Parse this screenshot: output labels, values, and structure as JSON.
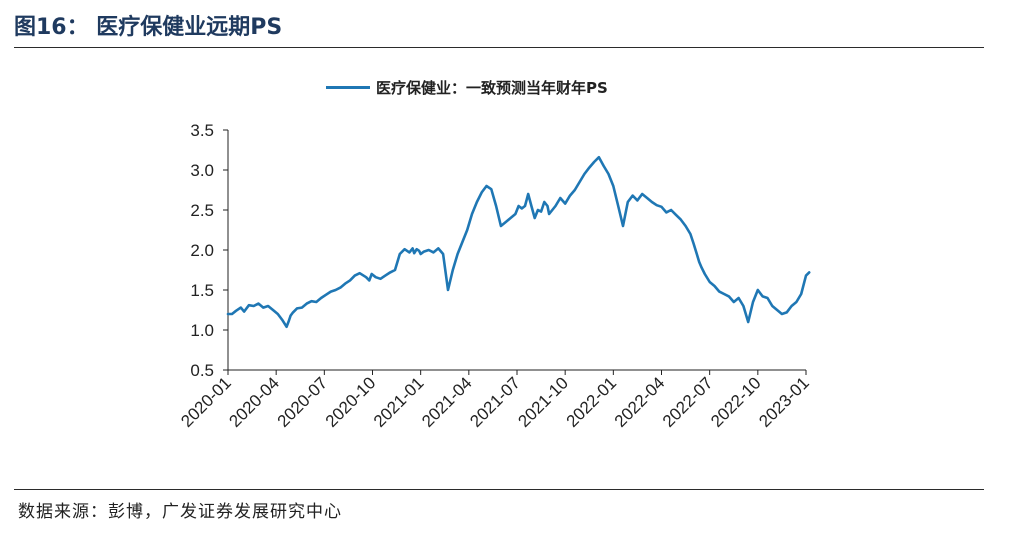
{
  "figure": {
    "title": "图16：  医疗保健业远期PS",
    "source": "数据来源：彭博，广发证券发展研究中心"
  },
  "colors": {
    "series": "#1f77b4",
    "text": "#222222",
    "rule": "#2b2b2b"
  },
  "chart_data": {
    "type": "line",
    "title": "",
    "xlabel": "",
    "ylabel": "",
    "ylim": [
      0.5,
      3.5
    ],
    "yticks": [
      "0.5",
      "1.0",
      "1.5",
      "2.0",
      "2.5",
      "3.0",
      "3.5"
    ],
    "xticks": [
      "2020-01",
      "2020-04",
      "2020-07",
      "2020-10",
      "2021-01",
      "2021-04",
      "2021-07",
      "2021-10",
      "2022-01",
      "2022-04",
      "2022-07",
      "2022-10",
      "2023-01"
    ],
    "legend": "top-center",
    "series": [
      {
        "name": "医疗保健业：一致预测当年财年PS",
        "x": [
          0.0,
          0.25,
          0.5,
          0.8,
          1.0,
          1.3,
          1.6,
          1.9,
          2.2,
          2.5,
          2.8,
          3.1,
          3.4,
          3.65,
          3.8,
          3.9,
          4.05,
          4.3,
          4.6,
          4.9,
          5.2,
          5.5,
          5.8,
          6.1,
          6.4,
          6.7,
          7.0,
          7.3,
          7.6,
          7.9,
          8.2,
          8.6,
          8.8,
          8.95,
          9.2,
          9.5,
          9.8,
          10.1,
          10.4,
          10.7,
          11.0,
          11.3,
          11.5,
          11.6,
          11.75,
          11.9,
          12.0,
          12.2,
          12.5,
          12.8,
          13.1,
          13.4,
          13.7,
          14.0,
          14.3,
          14.6,
          14.9,
          15.2,
          15.5,
          15.8,
          16.1,
          16.4,
          16.7,
          17.0,
          17.3,
          17.6,
          17.9,
          18.1,
          18.3,
          18.5,
          18.7,
          18.9,
          19.1,
          19.3,
          19.5,
          19.7,
          19.9,
          20.0,
          20.2,
          20.4,
          20.7,
          21.0,
          21.3,
          21.6,
          21.9,
          22.2,
          22.5,
          22.8,
          23.1,
          23.4,
          23.7,
          24.0,
          24.3,
          24.6,
          24.9,
          25.2,
          25.5,
          25.8,
          26.1,
          26.4,
          26.7,
          27.0,
          27.3,
          27.6,
          27.9,
          28.2,
          28.5,
          28.8,
          29.0,
          29.2,
          29.35,
          29.5,
          29.7,
          30.0,
          30.3,
          30.6,
          30.9,
          31.2,
          31.5,
          31.8,
          32.1,
          32.4,
          32.7,
          33.0,
          33.3,
          33.6,
          33.9,
          34.2,
          34.5,
          34.8,
          35.1,
          35.4,
          35.7,
          36.0,
          36.2
        ],
        "values": [
          1.2,
          1.2,
          1.24,
          1.28,
          1.23,
          1.31,
          1.3,
          1.33,
          1.28,
          1.3,
          1.25,
          1.2,
          1.12,
          1.04,
          1.12,
          1.18,
          1.22,
          1.27,
          1.28,
          1.33,
          1.36,
          1.35,
          1.4,
          1.44,
          1.48,
          1.5,
          1.53,
          1.58,
          1.62,
          1.68,
          1.71,
          1.66,
          1.62,
          1.7,
          1.66,
          1.64,
          1.68,
          1.72,
          1.75,
          1.95,
          2.01,
          1.97,
          2.02,
          1.96,
          2.01,
          1.99,
          1.95,
          1.98,
          2.0,
          1.97,
          2.02,
          1.95,
          1.5,
          1.75,
          1.95,
          2.1,
          2.25,
          2.45,
          2.6,
          2.72,
          2.8,
          2.76,
          2.55,
          2.3,
          2.35,
          2.4,
          2.45,
          2.55,
          2.52,
          2.55,
          2.7,
          2.55,
          2.4,
          2.5,
          2.48,
          2.6,
          2.55,
          2.45,
          2.5,
          2.55,
          2.65,
          2.58,
          2.68,
          2.75,
          2.85,
          2.95,
          3.03,
          3.1,
          3.16,
          3.05,
          2.95,
          2.8,
          2.55,
          2.3,
          2.6,
          2.68,
          2.62,
          2.7,
          2.65,
          2.6,
          2.56,
          2.54,
          2.47,
          2.5,
          2.44,
          2.38,
          2.3,
          2.2,
          2.08,
          1.95,
          1.85,
          1.78,
          1.7,
          1.6,
          1.55,
          1.48,
          1.45,
          1.42,
          1.35,
          1.4,
          1.3,
          1.1,
          1.35,
          1.5,
          1.42,
          1.4,
          1.3,
          1.25,
          1.2,
          1.22,
          1.3,
          1.35,
          1.45,
          1.68,
          1.72
        ]
      }
    ]
  }
}
